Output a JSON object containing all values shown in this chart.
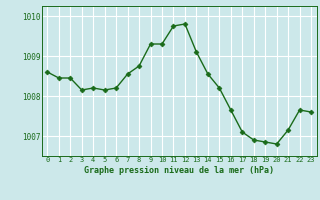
{
  "x": [
    0,
    1,
    2,
    3,
    4,
    5,
    6,
    7,
    8,
    9,
    10,
    11,
    12,
    13,
    14,
    15,
    16,
    17,
    18,
    19,
    20,
    21,
    22,
    23
  ],
  "y": [
    1008.6,
    1008.45,
    1008.45,
    1008.15,
    1008.2,
    1008.15,
    1008.2,
    1008.55,
    1008.75,
    1009.3,
    1009.3,
    1009.75,
    1009.8,
    1009.1,
    1008.55,
    1008.2,
    1007.65,
    1007.1,
    1006.9,
    1006.85,
    1006.8,
    1007.15,
    1007.65,
    1007.6
  ],
  "line_color": "#1a6b1a",
  "marker_color": "#1a6b1a",
  "bg_color": "#cce8ea",
  "grid_color": "#ffffff",
  "xlabel": "Graphe pression niveau de la mer (hPa)",
  "xlabel_color": "#1a6b1a",
  "tick_color": "#1a6b1a",
  "ylim": [
    1006.5,
    1010.25
  ],
  "yticks": [
    1007,
    1008,
    1009,
    1010
  ],
  "marker_size": 2.5,
  "linewidth": 1.0
}
